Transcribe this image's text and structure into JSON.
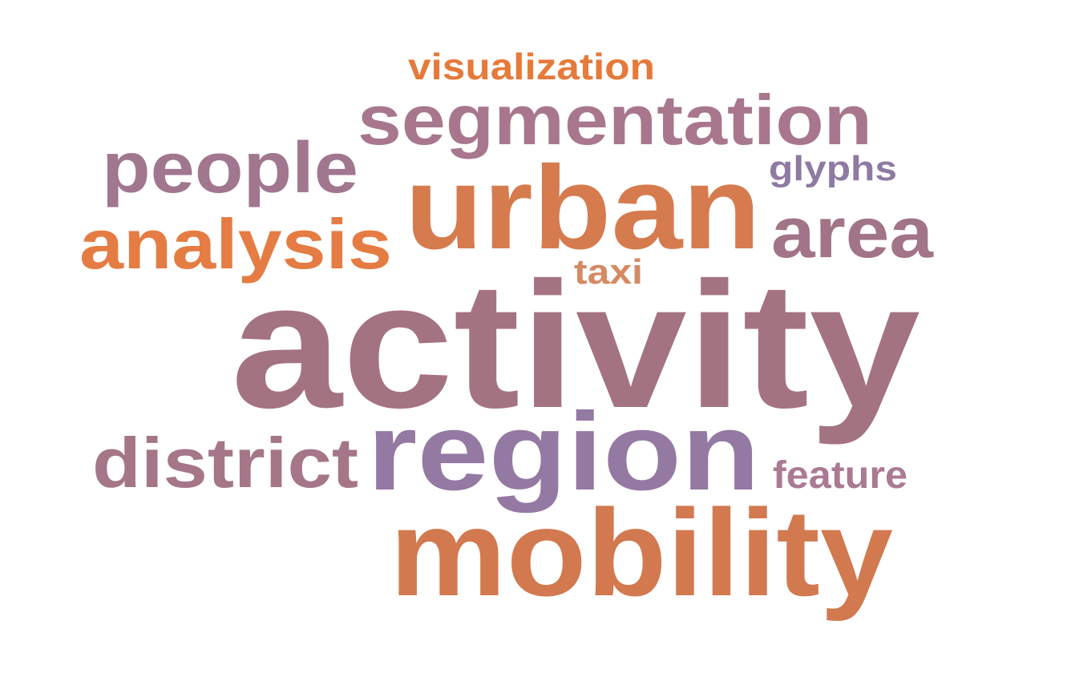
{
  "word_cloud": {
    "words": [
      {
        "text": "activity",
        "color": "#a47382"
      },
      {
        "text": "region",
        "color": "#9479a3"
      },
      {
        "text": "mobility",
        "color": "#d2794f"
      },
      {
        "text": "urban",
        "color": "#d67b4e"
      },
      {
        "text": "segmentation",
        "color": "#a8778d"
      },
      {
        "text": "people",
        "color": "#a1768f"
      },
      {
        "text": "analysis",
        "color": "#e57c43"
      },
      {
        "text": "district",
        "color": "#a57688"
      },
      {
        "text": "area",
        "color": "#a27487"
      },
      {
        "text": "visualization",
        "color": "#e67a3a"
      },
      {
        "text": "glyphs",
        "color": "#8e7aa2"
      },
      {
        "text": "taxi",
        "color": "#d58a62"
      },
      {
        "text": "feature",
        "color": "#aa7a93"
      }
    ]
  }
}
